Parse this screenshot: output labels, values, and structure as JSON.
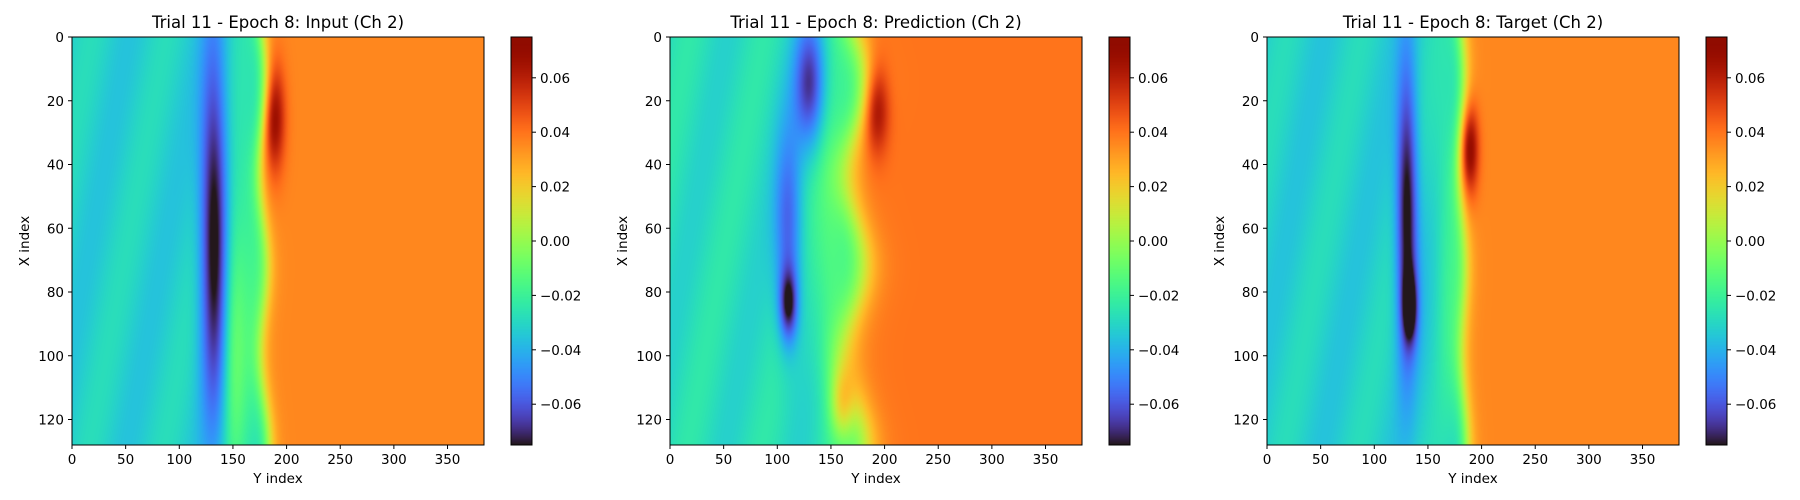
{
  "chart_data": [
    {
      "type": "heatmap",
      "title": "Trial 11 - Epoch 8: Input (Ch 2)",
      "xlabel": "Y index",
      "ylabel": "X index",
      "xlim": [
        0,
        384
      ],
      "ylim": [
        128,
        0
      ],
      "x_ticks": [
        0,
        50,
        100,
        150,
        200,
        250,
        300,
        350
      ],
      "y_ticks": [
        0,
        20,
        40,
        60,
        80,
        100,
        120
      ],
      "colormap": "turbo",
      "colorbar": {
        "min": -0.075,
        "max": 0.075,
        "ticks": [
          0.06,
          0.04,
          0.02,
          0.0,
          -0.02,
          -0.04,
          -0.06
        ],
        "tick_labels": [
          "0.06",
          "0.04",
          "0.02",
          "0.00",
          "−0.02",
          "−0.04",
          "−0.06"
        ]
      },
      "field": {
        "left_value": -0.032,
        "right_value": 0.036,
        "front_y": 178,
        "front_tilt": 0.02,
        "front_wobble": 3,
        "front_width": 4,
        "features": [
          {
            "x": 60,
            "y": 132,
            "sx": 40,
            "sy": 9,
            "value": -0.05
          },
          {
            "x": 25,
            "y": 188,
            "sx": 12,
            "sy": 7,
            "value": 0.035
          },
          {
            "x": 65,
            "y": 165,
            "sx": 35,
            "sy": 10,
            "value": 0.012
          },
          {
            "x": 95,
            "y": 150,
            "sx": 30,
            "sy": 8,
            "value": 0.022
          }
        ]
      }
    },
    {
      "type": "heatmap",
      "title": "Trial 11 - Epoch 8: Prediction (Ch 2)",
      "xlabel": "Y index",
      "ylabel": "X index",
      "xlim": [
        0,
        384
      ],
      "ylim": [
        128,
        0
      ],
      "x_ticks": [
        0,
        50,
        100,
        150,
        200,
        250,
        300,
        350
      ],
      "y_ticks": [
        0,
        20,
        40,
        60,
        80,
        100,
        120
      ],
      "colormap": "turbo",
      "colorbar": {
        "min": -0.075,
        "max": 0.075,
        "ticks": [
          0.06,
          0.04,
          0.02,
          0.0,
          -0.02,
          -0.04,
          -0.06
        ],
        "tick_labels": [
          "0.06",
          "0.04",
          "0.02",
          "0.00",
          "−0.02",
          "−0.04",
          "−0.06"
        ]
      },
      "field": {
        "left_value": -0.028,
        "right_value": 0.04,
        "front_y": 172,
        "front_tilt": 0.0,
        "front_wobble": 8,
        "front_width": 8,
        "features": [
          {
            "x": 15,
            "y": 130,
            "sx": 14,
            "sy": 10,
            "value": -0.04
          },
          {
            "x": 60,
            "y": 110,
            "sx": 22,
            "sy": 9,
            "value": -0.03
          },
          {
            "x": 84,
            "y": 110,
            "sx": 8,
            "sy": 6,
            "value": -0.04
          },
          {
            "x": 22,
            "y": 192,
            "sx": 10,
            "sy": 8,
            "value": 0.03
          },
          {
            "x": 115,
            "y": 160,
            "sx": 8,
            "sy": 8,
            "value": 0.03
          },
          {
            "x": 70,
            "y": 150,
            "sx": 30,
            "sy": 12,
            "value": 0.015
          }
        ]
      }
    },
    {
      "type": "heatmap",
      "title": "Trial 11 - Epoch 8: Target (Ch 2)",
      "xlabel": "Y index",
      "ylabel": "X index",
      "xlim": [
        0,
        384
      ],
      "ylim": [
        128,
        0
      ],
      "x_ticks": [
        0,
        50,
        100,
        150,
        200,
        250,
        300,
        350
      ],
      "y_ticks": [
        0,
        20,
        40,
        60,
        80,
        100,
        120
      ],
      "colormap": "turbo",
      "colorbar": {
        "min": -0.075,
        "max": 0.075,
        "ticks": [
          0.06,
          0.04,
          0.02,
          0.0,
          -0.02,
          -0.04,
          -0.06
        ],
        "tick_labels": [
          "0.06",
          "0.04",
          "0.02",
          "0.00",
          "−0.02",
          "−0.04",
          "−0.06"
        ]
      },
      "field": {
        "left_value": -0.032,
        "right_value": 0.036,
        "front_y": 182,
        "front_tilt": 0.02,
        "front_wobble": 2,
        "front_width": 4,
        "features": [
          {
            "x": 55,
            "y": 130,
            "sx": 32,
            "sy": 7,
            "value": -0.05
          },
          {
            "x": 85,
            "y": 133,
            "sx": 8,
            "sy": 5,
            "value": -0.035
          },
          {
            "x": 35,
            "y": 188,
            "sx": 10,
            "sy": 6,
            "value": 0.04
          },
          {
            "x": 60,
            "y": 168,
            "sx": 35,
            "sy": 9,
            "value": 0.012
          }
        ]
      }
    }
  ]
}
